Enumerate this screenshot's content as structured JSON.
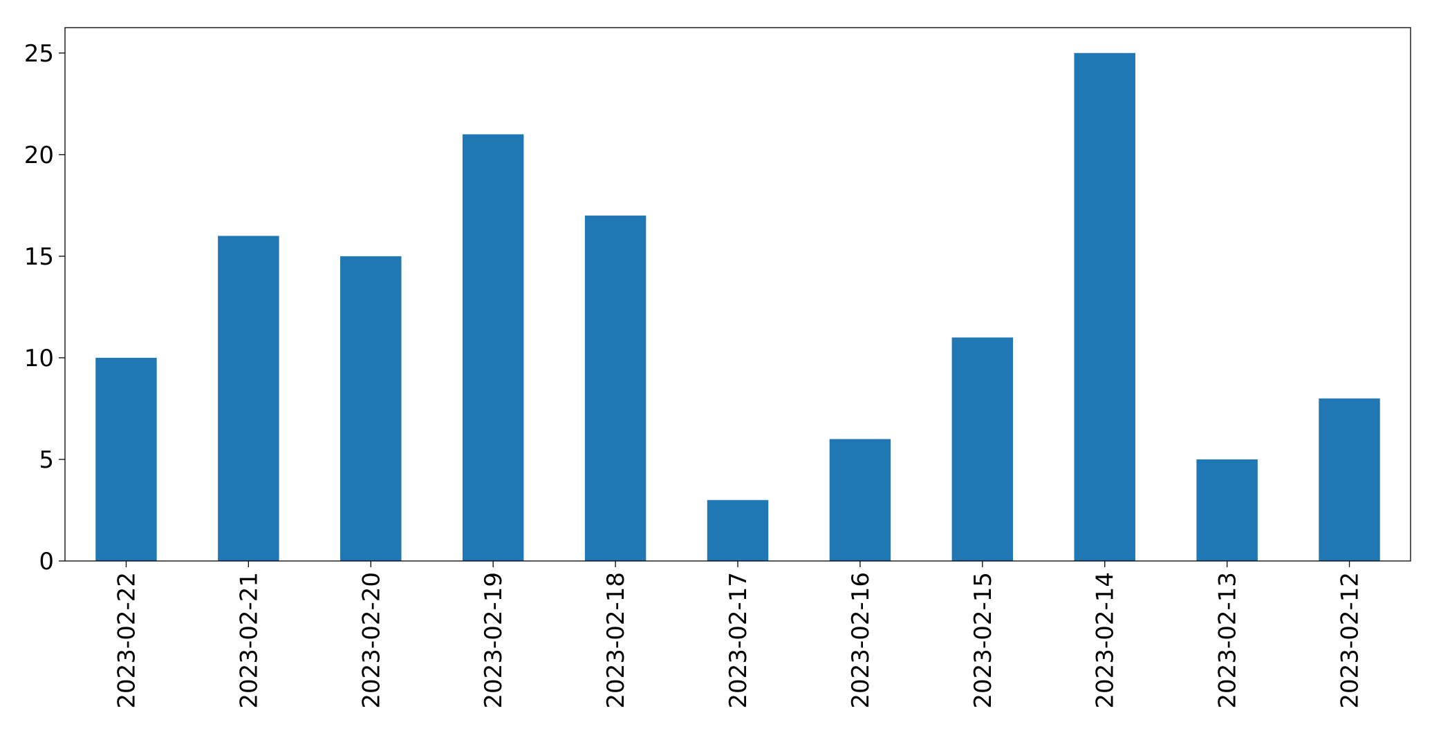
{
  "chart_data": {
    "type": "bar",
    "categories": [
      "2023-02-22",
      "2023-02-21",
      "2023-02-20",
      "2023-02-19",
      "2023-02-18",
      "2023-02-17",
      "2023-02-16",
      "2023-02-15",
      "2023-02-14",
      "2023-02-13",
      "2023-02-12"
    ],
    "values": [
      10,
      16,
      15,
      21,
      17,
      3,
      6,
      11,
      25,
      5,
      8
    ],
    "color": "#1f77b4",
    "ylim": [
      0,
      26.25
    ],
    "yticks": [
      0,
      5,
      10,
      15,
      20,
      25
    ],
    "grid": false
  }
}
